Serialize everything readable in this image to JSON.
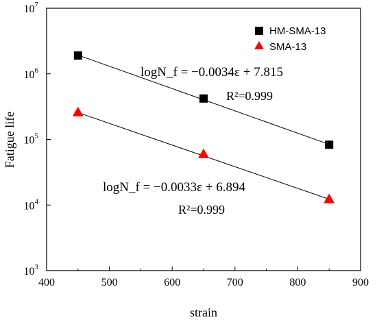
{
  "chart_data": {
    "type": "scatter",
    "title": "",
    "xlabel": "strain",
    "ylabel": "Fatigue life",
    "xlim": [
      400,
      900
    ],
    "ylim": [
      1000,
      10000000
    ],
    "y_scale": "log",
    "grid": false,
    "legend_position": "top-right",
    "x_ticks": [
      "400",
      "500",
      "600",
      "700",
      "800",
      "900"
    ],
    "y_ticks": [
      {
        "base": "10",
        "exp": "3",
        "value": 1000
      },
      {
        "base": "10",
        "exp": "4",
        "value": 10000
      },
      {
        "base": "10",
        "exp": "5",
        "value": 100000
      },
      {
        "base": "10",
        "exp": "6",
        "value": 1000000
      },
      {
        "base": "10",
        "exp": "7",
        "value": 10000000
      }
    ],
    "series": [
      {
        "name": "HM-SMA-13",
        "marker": "square",
        "color": "#000000",
        "x": [
          450,
          650,
          850
        ],
        "y": [
          1900000,
          420000,
          83000
        ],
        "fit_equation": "logN_f = −0.0034ε + 7.815",
        "fit_r2": "R²=0.999",
        "fit_slope": -0.0034,
        "fit_intercept": 7.815
      },
      {
        "name": "SMA-13",
        "marker": "triangle",
        "color": "#ff0000",
        "x": [
          450,
          650,
          850
        ],
        "y": [
          260000,
          60000,
          12300
        ],
        "fit_equation": "logN_f = −0.0033ε + 6.894",
        "fit_r2": "R²=0.999",
        "fit_slope": -0.0033,
        "fit_intercept": 6.894
      }
    ]
  }
}
